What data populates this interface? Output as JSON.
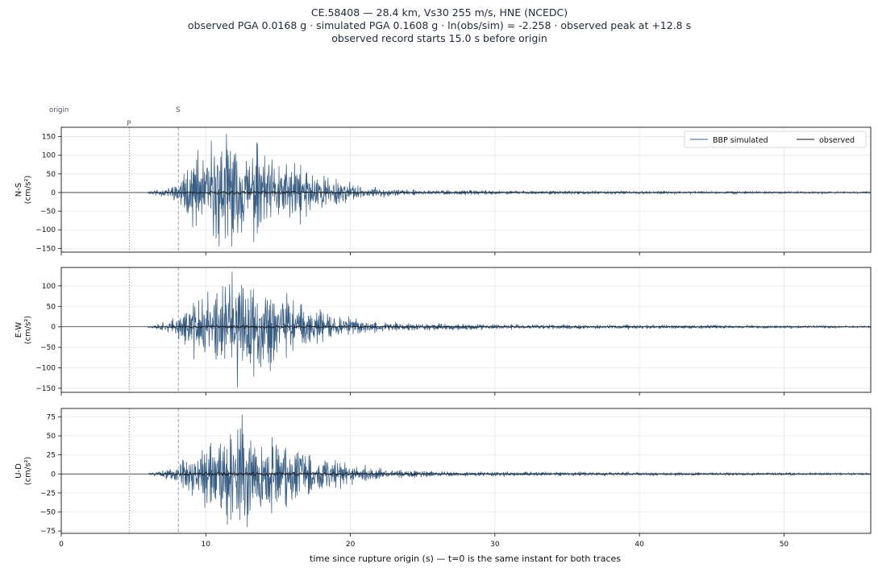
{
  "chart_data": {
    "type": "line",
    "title_lines": [
      "CE.58408  —  28.4 km, Vs30 255 m/s, HNE (NCEDC)",
      "observed PGA 0.0168 g   ·   simulated PGA 0.1608 g   ·   ln(obs/sim) = -2.258   ·   observed peak at +12.8 s",
      "observed record starts 15.0 s before origin"
    ],
    "xlabel": "time since rupture origin (s)   —   t=0 is the same instant for both traces",
    "xlim": [
      0,
      56
    ],
    "xticks": [
      0,
      10,
      20,
      30,
      40,
      50
    ],
    "grid": true,
    "legend": {
      "placement": "top-right of first panel",
      "entries": [
        {
          "name": "BBP simulated",
          "color": "#3b5f84"
        },
        {
          "name": "observed",
          "color": "#111111"
        }
      ]
    },
    "markers": [
      {
        "label": "origin",
        "t": 0,
        "style": "none"
      },
      {
        "label": "P",
        "t": 4.7,
        "style": "dotted"
      },
      {
        "label": "S",
        "t": 8.1,
        "style": "dashed"
      }
    ],
    "panels": [
      {
        "ylabel": "N-S\n(cm/s²)",
        "ylim": [
          -160,
          175
        ],
        "yticks": [
          -150,
          -100,
          -50,
          0,
          50,
          100,
          150
        ],
        "sim": {
          "onset": 6.0,
          "peak_time": 11.4,
          "amp": 85,
          "shape": 1.4,
          "decay": 4.0,
          "tail_to": 56,
          "pga_pos": 158,
          "pga_neg": -145,
          "seed": 11,
          "envelope": [
            [
              6,
              0.02
            ],
            [
              8,
              0.15
            ],
            [
              9,
              0.5
            ],
            [
              10,
              0.75
            ],
            [
              11,
              1.0
            ],
            [
              12,
              0.9
            ],
            [
              13.5,
              0.75
            ],
            [
              15,
              0.62
            ],
            [
              17,
              0.42
            ],
            [
              19,
              0.22
            ],
            [
              21,
              0.1
            ],
            [
              24,
              0.05
            ],
            [
              30,
              0.03
            ],
            [
              56,
              0.015
            ]
          ]
        },
        "obs": {
          "onset": 6.0,
          "amp": 6,
          "seed": 21,
          "envelope": [
            [
              6,
              0.2
            ],
            [
              8,
              0.5
            ],
            [
              10,
              0.8
            ],
            [
              12,
              1.0
            ],
            [
              15,
              0.9
            ],
            [
              18,
              0.7
            ],
            [
              22,
              0.5
            ],
            [
              26,
              0.35
            ],
            [
              35,
              0.3
            ],
            [
              45,
              0.25
            ],
            [
              56,
              0.2
            ]
          ]
        }
      },
      {
        "ylabel": "E-W\n(cm/s²)",
        "ylim": [
          -160,
          145
        ],
        "yticks": [
          -150,
          -100,
          -50,
          0,
          50,
          100
        ],
        "sim": {
          "onset": 6.0,
          "peak_time": 11.8,
          "amp": 70,
          "shape": 1.4,
          "decay": 4.0,
          "tail_to": 56,
          "pga_pos": 135,
          "pga_neg": -148,
          "seed": 37,
          "envelope": [
            [
              6,
              0.02
            ],
            [
              8,
              0.15
            ],
            [
              9,
              0.5
            ],
            [
              10,
              0.75
            ],
            [
              11,
              0.95
            ],
            [
              12,
              1.0
            ],
            [
              13.5,
              0.8
            ],
            [
              15,
              0.62
            ],
            [
              17,
              0.4
            ],
            [
              19,
              0.2
            ],
            [
              21,
              0.12
            ],
            [
              24,
              0.08
            ],
            [
              30,
              0.05
            ],
            [
              56,
              0.02
            ]
          ]
        },
        "obs": {
          "onset": 6.0,
          "amp": 6,
          "seed": 43,
          "envelope": [
            [
              6,
              0.2
            ],
            [
              8,
              0.5
            ],
            [
              10,
              0.8
            ],
            [
              12,
              1.0
            ],
            [
              15,
              0.9
            ],
            [
              18,
              0.7
            ],
            [
              22,
              0.5
            ],
            [
              26,
              0.4
            ],
            [
              35,
              0.3
            ],
            [
              45,
              0.25
            ],
            [
              56,
              0.2
            ]
          ]
        }
      },
      {
        "ylabel": "U-D\n(cm/s²)",
        "ylim": [
          -78,
          86
        ],
        "yticks": [
          -75,
          -50,
          -25,
          0,
          25,
          50,
          75
        ],
        "sim": {
          "onset": 6.0,
          "peak_time": 12.5,
          "amp": 35,
          "shape": 1.4,
          "decay": 4.0,
          "tail_to": 56,
          "pga_pos": 78,
          "pga_neg": -70,
          "seed": 59,
          "envelope": [
            [
              6,
              0.02
            ],
            [
              8,
              0.15
            ],
            [
              9,
              0.45
            ],
            [
              10,
              0.7
            ],
            [
              11,
              0.9
            ],
            [
              12.5,
              1.0
            ],
            [
              14,
              0.85
            ],
            [
              16,
              0.65
            ],
            [
              18,
              0.4
            ],
            [
              20,
              0.2
            ],
            [
              22,
              0.1
            ],
            [
              26,
              0.05
            ],
            [
              56,
              0.02
            ]
          ]
        },
        "obs": {
          "onset": 6.0,
          "amp": 3.5,
          "seed": 71,
          "envelope": [
            [
              6,
              0.3
            ],
            [
              8,
              0.6
            ],
            [
              10,
              0.9
            ],
            [
              12,
              1.0
            ],
            [
              15,
              0.9
            ],
            [
              18,
              0.7
            ],
            [
              22,
              0.5
            ],
            [
              26,
              0.35
            ],
            [
              35,
              0.3
            ],
            [
              45,
              0.25
            ],
            [
              56,
              0.2
            ]
          ]
        }
      }
    ]
  }
}
